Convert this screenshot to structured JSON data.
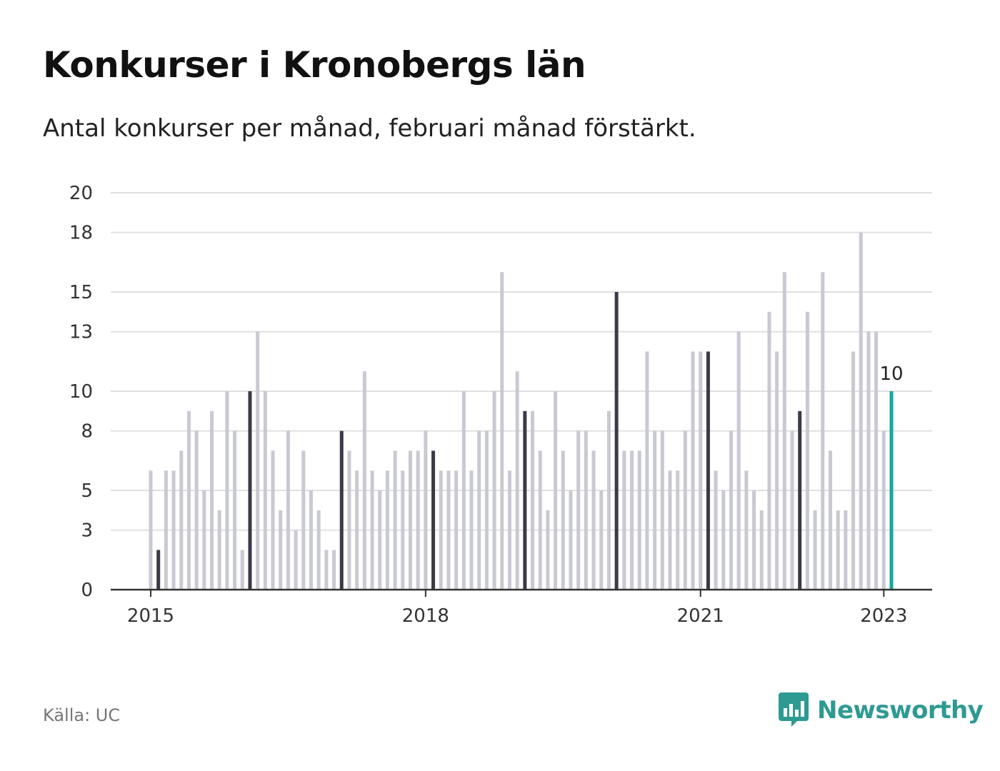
{
  "title": "Konkurser i Kronobergs län",
  "subtitle": "Antal konkurser per månad, februari månad förstärkt.",
  "source": "Källa: UC",
  "brand": {
    "name": "Newsworthy",
    "icon": "newsworthy-logo-icon",
    "color": "#2e9a92"
  },
  "colors": {
    "normal": "#c9c9d3",
    "february": "#3a3a48",
    "latest": "#15a89a",
    "grid": "#e0e0e0",
    "axis": "#333333"
  },
  "chart_data": {
    "type": "bar",
    "title": "Konkurser i Kronobergs län",
    "subtitle": "Antal konkurser per månad, februari månad förstärkt.",
    "xlabel": "",
    "ylabel": "",
    "ylim": [
      0,
      20
    ],
    "yticks": [
      0,
      3,
      5,
      8,
      10,
      13,
      15,
      18,
      20
    ],
    "xticks": [
      "2015",
      "2018",
      "2021",
      "2023"
    ],
    "grid": true,
    "highlight": "February bars darker; last bar highlighted and labeled",
    "last_label": "10",
    "months": [
      "2015-01",
      "2015-02",
      "2015-03",
      "2015-04",
      "2015-05",
      "2015-06",
      "2015-07",
      "2015-08",
      "2015-09",
      "2015-10",
      "2015-11",
      "2015-12",
      "2016-01",
      "2016-02",
      "2016-03",
      "2016-04",
      "2016-05",
      "2016-06",
      "2016-07",
      "2016-08",
      "2016-09",
      "2016-10",
      "2016-11",
      "2016-12",
      "2017-01",
      "2017-02",
      "2017-03",
      "2017-04",
      "2017-05",
      "2017-06",
      "2017-07",
      "2017-08",
      "2017-09",
      "2017-10",
      "2017-11",
      "2017-12",
      "2018-01",
      "2018-02",
      "2018-03",
      "2018-04",
      "2018-05",
      "2018-06",
      "2018-07",
      "2018-08",
      "2018-09",
      "2018-10",
      "2018-11",
      "2018-12",
      "2019-01",
      "2019-02",
      "2019-03",
      "2019-04",
      "2019-05",
      "2019-06",
      "2019-07",
      "2019-08",
      "2019-09",
      "2019-10",
      "2019-11",
      "2019-12",
      "2020-01",
      "2020-02",
      "2020-03",
      "2020-04",
      "2020-05",
      "2020-06",
      "2020-07",
      "2020-08",
      "2020-09",
      "2020-10",
      "2020-11",
      "2020-12",
      "2021-01",
      "2021-02",
      "2021-03",
      "2021-04",
      "2021-05",
      "2021-06",
      "2021-07",
      "2021-08",
      "2021-09",
      "2021-10",
      "2021-11",
      "2021-12",
      "2022-01",
      "2022-02",
      "2022-03",
      "2022-04",
      "2022-05",
      "2022-06",
      "2022-07",
      "2022-08",
      "2022-09",
      "2022-10",
      "2022-11",
      "2022-12",
      "2023-01",
      "2023-02"
    ],
    "values": [
      6,
      2,
      6,
      6,
      7,
      9,
      8,
      5,
      9,
      4,
      10,
      8,
      2,
      10,
      13,
      10,
      7,
      4,
      8,
      3,
      7,
      5,
      4,
      2,
      2,
      8,
      7,
      6,
      11,
      6,
      5,
      6,
      7,
      6,
      7,
      7,
      8,
      7,
      6,
      6,
      6,
      10,
      6,
      8,
      8,
      10,
      16,
      6,
      11,
      9,
      9,
      7,
      4,
      10,
      7,
      5,
      8,
      8,
      7,
      5,
      9,
      15,
      7,
      7,
      7,
      12,
      8,
      8,
      6,
      6,
      8,
      12,
      12,
      12,
      6,
      5,
      8,
      13,
      6,
      5,
      4,
      14,
      12,
      16,
      8,
      9,
      14,
      4,
      16,
      7,
      4,
      4,
      12,
      18,
      13,
      13,
      8,
      10
    ]
  }
}
